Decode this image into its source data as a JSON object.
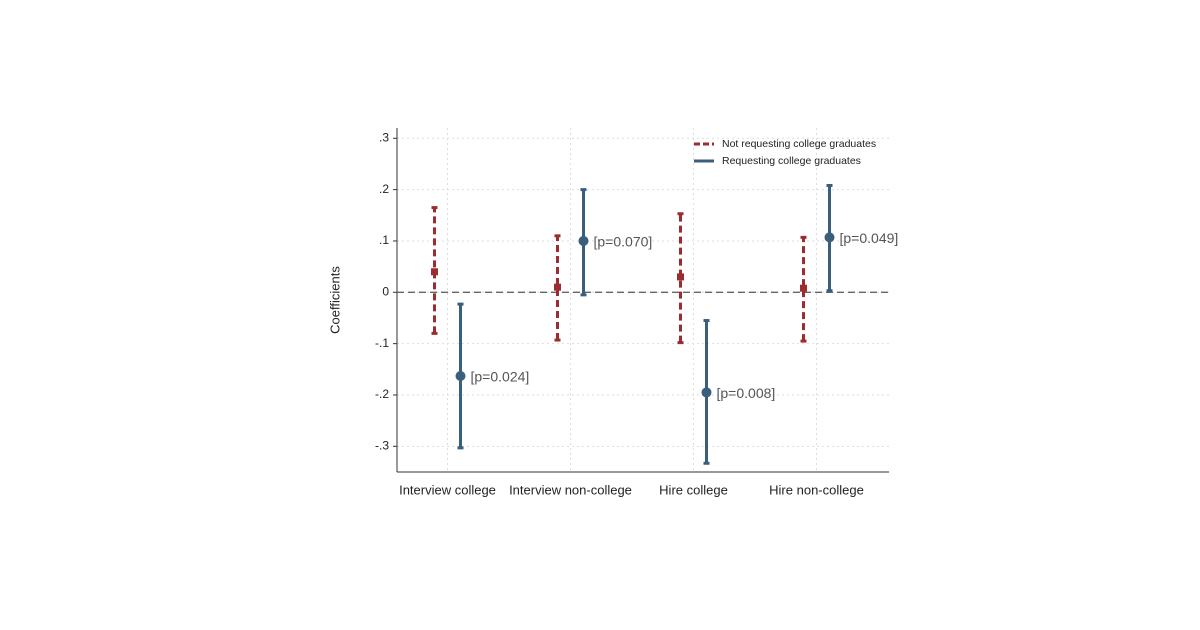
{
  "chart_data": {
    "type": "errorbar",
    "y_label": "Coefficients",
    "categories": [
      "Interview college",
      "Interview non-college",
      "Hire college",
      "Hire non-college"
    ],
    "ylim": [
      -0.35,
      0.32
    ],
    "yticks": [
      {
        "value": -0.3,
        "label": "-.3"
      },
      {
        "value": -0.2,
        "label": "-.2"
      },
      {
        "value": -0.1,
        "label": "-.1"
      },
      0,
      {
        "value": 0.1,
        "label": ".1"
      },
      {
        "value": 0.2,
        "label": ".2"
      },
      {
        "value": 0.3,
        "label": ".3"
      }
    ],
    "grid": true,
    "reference_line": 0,
    "legend": "top-right",
    "series": [
      {
        "name": "Not requesting college graduates",
        "color": "#9b2d30",
        "dashed": true,
        "values": [
          0.04,
          0.01,
          0.03,
          0.008
        ],
        "lower": [
          -0.08,
          -0.093,
          -0.098,
          -0.095
        ],
        "upper": [
          0.165,
          0.11,
          0.153,
          0.107
        ]
      },
      {
        "name": "Requesting college graduates",
        "color": "#3a5f7d",
        "dashed": false,
        "values": [
          -0.163,
          0.1,
          -0.195,
          0.107
        ],
        "lower": [
          -0.303,
          -0.005,
          -0.333,
          0.003
        ],
        "upper": [
          -0.023,
          0.2,
          -0.055,
          0.208
        ],
        "annotations": [
          "[p=0.024]",
          "[p=0.070]",
          "[p=0.008]",
          "[p=0.049]"
        ]
      }
    ]
  }
}
